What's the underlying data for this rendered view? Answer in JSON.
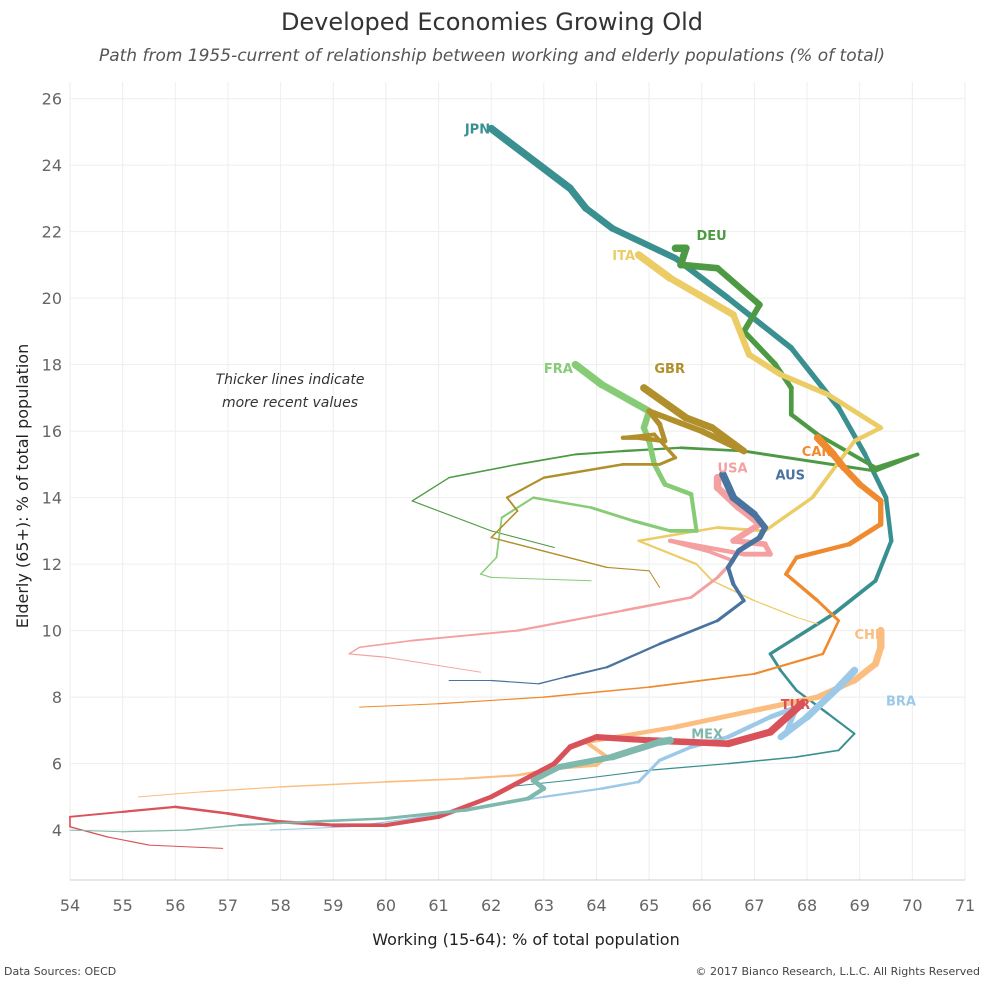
{
  "title": "Developed Economies Growing Old",
  "subtitle": "Path from 1955-current of relationship between working and elderly populations (% of total)",
  "footer": {
    "source": "Data Sources: OECD",
    "copyright": "© 2017 Bianco Research, L.L.C. All Rights Reserved"
  },
  "chart_data": {
    "type": "line",
    "xlabel": "Working (15-64): % of total population",
    "ylabel": "Elderly (65+): % of total population",
    "xlim": [
      54,
      71
    ],
    "ylim": [
      2.5,
      26.5
    ],
    "xticks": [
      54,
      55,
      56,
      57,
      58,
      59,
      60,
      61,
      62,
      63,
      64,
      65,
      66,
      67,
      68,
      69,
      70,
      71
    ],
    "yticks": [
      4,
      6,
      8,
      10,
      12,
      14,
      16,
      18,
      20,
      22,
      24,
      26
    ],
    "grid": true,
    "annotation": "Thicker lines indicate more recent values",
    "series": [
      {
        "name": "JPN",
        "color": "#3a9090",
        "points": [
          [
            62.3,
            5.3
          ],
          [
            63.5,
            5.5
          ],
          [
            65,
            5.8
          ],
          [
            66.5,
            6.0
          ],
          [
            67.8,
            6.2
          ],
          [
            68.6,
            6.4
          ],
          [
            68.9,
            6.9
          ],
          [
            68.4,
            7.5
          ],
          [
            67.8,
            8.2
          ],
          [
            67.5,
            8.8
          ],
          [
            67.3,
            9.3
          ],
          [
            67.8,
            9.8
          ],
          [
            68.5,
            10.5
          ],
          [
            69.3,
            11.5
          ],
          [
            69.6,
            12.7
          ],
          [
            69.5,
            14.0
          ],
          [
            69.1,
            15.3
          ],
          [
            68.6,
            16.7
          ],
          [
            67.7,
            18.5
          ],
          [
            66.5,
            20.0
          ],
          [
            65.5,
            21.2
          ],
          [
            64.3,
            22.1
          ],
          [
            63.8,
            22.7
          ],
          [
            63.5,
            23.3
          ],
          [
            62,
            25.1
          ]
        ]
      },
      {
        "name": "DEU",
        "color": "#4e9a44",
        "points": [
          [
            63.2,
            12.5
          ],
          [
            62,
            13.0
          ],
          [
            60.5,
            13.9
          ],
          [
            61.2,
            14.6
          ],
          [
            62.5,
            15.0
          ],
          [
            63.6,
            15.3
          ],
          [
            64.5,
            15.4
          ],
          [
            65.6,
            15.5
          ],
          [
            66.8,
            15.4
          ],
          [
            69.3,
            14.8
          ],
          [
            70.1,
            15.3
          ],
          [
            69.3,
            14.9
          ],
          [
            68.2,
            15.9
          ],
          [
            67.7,
            16.5
          ],
          [
            67.7,
            17.3
          ],
          [
            67.4,
            18.0
          ],
          [
            66.8,
            19.0
          ],
          [
            67.1,
            19.8
          ],
          [
            66.3,
            20.9
          ],
          [
            65.6,
            21.0
          ],
          [
            65.7,
            21.5
          ],
          [
            65.5,
            21.5
          ]
        ]
      },
      {
        "name": "ITA",
        "color": "#eccc65",
        "points": [
          [
            68.2,
            10.2
          ],
          [
            67.8,
            10.4
          ],
          [
            67.0,
            10.9
          ],
          [
            66.2,
            11.5
          ],
          [
            65.9,
            12.0
          ],
          [
            64.8,
            12.7
          ],
          [
            66.3,
            13.1
          ],
          [
            67.2,
            13.0
          ],
          [
            68.1,
            14.0
          ],
          [
            68.9,
            15.7
          ],
          [
            69.4,
            16.1
          ],
          [
            68.4,
            17.1
          ],
          [
            67.5,
            17.7
          ],
          [
            66.9,
            18.3
          ],
          [
            66.6,
            19.5
          ],
          [
            65.4,
            20.6
          ],
          [
            64.8,
            21.3
          ]
        ]
      },
      {
        "name": "FRA",
        "color": "#86cc76",
        "points": [
          [
            63.9,
            11.5
          ],
          [
            62,
            11.6
          ],
          [
            61.8,
            11.7
          ],
          [
            62.1,
            12.2
          ],
          [
            62.2,
            13.4
          ],
          [
            62.8,
            14.0
          ],
          [
            63.9,
            13.7
          ],
          [
            64.7,
            13.3
          ],
          [
            65.4,
            13.0
          ],
          [
            65.9,
            13.0
          ],
          [
            65.8,
            14.1
          ],
          [
            65.3,
            14.4
          ],
          [
            65.1,
            15.0
          ],
          [
            65.0,
            15.7
          ],
          [
            64.9,
            16.1
          ],
          [
            65.0,
            16.6
          ],
          [
            64.1,
            17.4
          ],
          [
            63.6,
            18.0
          ]
        ]
      },
      {
        "name": "GBR",
        "color": "#b18f2b",
        "points": [
          [
            65.2,
            11.3
          ],
          [
            65.0,
            11.8
          ],
          [
            64.2,
            11.9
          ],
          [
            62.0,
            12.8
          ],
          [
            62.5,
            13.6
          ],
          [
            62.3,
            14.0
          ],
          [
            63,
            14.6
          ],
          [
            64.5,
            15.0
          ],
          [
            65.2,
            15.0
          ],
          [
            65.5,
            15.2
          ],
          [
            65.1,
            15.9
          ],
          [
            64.5,
            15.8
          ],
          [
            64.8,
            15.8
          ],
          [
            65.3,
            15.7
          ],
          [
            65.2,
            16.2
          ],
          [
            65.0,
            16.6
          ],
          [
            66.0,
            16.0
          ],
          [
            66.8,
            15.4
          ],
          [
            66.2,
            16.1
          ],
          [
            65.7,
            16.4
          ],
          [
            64.9,
            17.3
          ]
        ]
      },
      {
        "name": "USA",
        "color": "#f4a0a0",
        "points": [
          [
            61.8,
            8.75
          ],
          [
            60,
            9.2
          ],
          [
            59.3,
            9.3
          ],
          [
            59.5,
            9.5
          ],
          [
            60.5,
            9.7
          ],
          [
            62.5,
            10.0
          ],
          [
            64.5,
            10.6
          ],
          [
            65.8,
            11.0
          ],
          [
            66.3,
            11.6
          ],
          [
            66.6,
            12.1
          ],
          [
            66.1,
            12.4
          ],
          [
            65.4,
            12.7
          ],
          [
            66.8,
            12.3
          ],
          [
            67.3,
            12.3
          ],
          [
            67.2,
            12.6
          ],
          [
            66.6,
            12.7
          ],
          [
            67.1,
            13.2
          ],
          [
            66.7,
            13.7
          ],
          [
            66.3,
            14.3
          ],
          [
            66.3,
            14.6
          ]
        ]
      },
      {
        "name": "AUS",
        "color": "#4a73a0",
        "points": [
          [
            61.2,
            8.5
          ],
          [
            62,
            8.5
          ],
          [
            62.9,
            8.4
          ],
          [
            63.4,
            8.6
          ],
          [
            64.2,
            8.9
          ],
          [
            65.2,
            9.6
          ],
          [
            66.3,
            10.3
          ],
          [
            66.8,
            10.9
          ],
          [
            66.6,
            11.4
          ],
          [
            66.5,
            11.9
          ],
          [
            66.7,
            12.4
          ],
          [
            67.1,
            12.8
          ],
          [
            67.2,
            13.1
          ],
          [
            67.0,
            13.5
          ],
          [
            66.6,
            14.0
          ],
          [
            66.4,
            14.7
          ]
        ]
      },
      {
        "name": "CAN",
        "color": "#ef8a2e",
        "points": [
          [
            59.5,
            7.7
          ],
          [
            61,
            7.8
          ],
          [
            63,
            8.0
          ],
          [
            65,
            8.3
          ],
          [
            67,
            8.7
          ],
          [
            68.3,
            9.3
          ],
          [
            68.6,
            10.3
          ],
          [
            68.2,
            10.9
          ],
          [
            67.6,
            11.7
          ],
          [
            67.8,
            12.2
          ],
          [
            68.8,
            12.6
          ],
          [
            69.4,
            13.2
          ],
          [
            69.4,
            13.9
          ],
          [
            69.0,
            14.4
          ],
          [
            68.7,
            14.9
          ],
          [
            68.5,
            15.3
          ],
          [
            68.2,
            15.8
          ]
        ]
      },
      {
        "name": "CHL",
        "color": "#fbbe80",
        "points": [
          [
            55.3,
            5.0
          ],
          [
            56.5,
            5.15
          ],
          [
            58,
            5.3
          ],
          [
            60,
            5.45
          ],
          [
            61.5,
            5.55
          ],
          [
            62.5,
            5.65
          ],
          [
            63.2,
            5.85
          ],
          [
            64,
            5.95
          ],
          [
            64.2,
            6.2
          ],
          [
            63.8,
            6.65
          ],
          [
            65.5,
            7.1
          ],
          [
            67,
            7.6
          ],
          [
            68.2,
            8.0
          ],
          [
            68.9,
            8.5
          ],
          [
            69.3,
            9.0
          ],
          [
            69.4,
            9.5
          ],
          [
            69.4,
            10.0
          ]
        ]
      },
      {
        "name": "BRA",
        "color": "#9cc9e8",
        "points": [
          [
            57.8,
            4.0
          ],
          [
            59.3,
            4.1
          ],
          [
            60.5,
            4.35
          ],
          [
            61.8,
            4.7
          ],
          [
            63,
            5.0
          ],
          [
            64.1,
            5.25
          ],
          [
            64.8,
            5.45
          ],
          [
            65.2,
            6.1
          ],
          [
            65.8,
            6.5
          ],
          [
            66.5,
            6.8
          ],
          [
            67.3,
            7.4
          ],
          [
            67.8,
            7.7
          ],
          [
            67.6,
            6.9
          ],
          [
            67.5,
            6.8
          ],
          [
            68.0,
            7.4
          ],
          [
            68.6,
            8.3
          ],
          [
            68.9,
            8.8
          ]
        ]
      },
      {
        "name": "TUR",
        "color": "#d9525a",
        "points": [
          [
            56.9,
            3.45
          ],
          [
            55.5,
            3.55
          ],
          [
            54.7,
            3.8
          ],
          [
            54,
            4.1
          ],
          [
            54,
            4.4
          ],
          [
            55,
            4.55
          ],
          [
            56,
            4.7
          ],
          [
            57,
            4.5
          ],
          [
            58,
            4.25
          ],
          [
            59,
            4.15
          ],
          [
            60,
            4.15
          ],
          [
            61,
            4.4
          ],
          [
            62,
            5.0
          ],
          [
            63.2,
            6.0
          ],
          [
            63.5,
            6.5
          ],
          [
            64,
            6.8
          ],
          [
            65,
            6.7
          ],
          [
            66.5,
            6.6
          ],
          [
            67.3,
            6.95
          ],
          [
            67.9,
            7.8
          ]
        ]
      },
      {
        "name": "MEX",
        "color": "#7fb8ad",
        "points": [
          [
            54,
            4.0
          ],
          [
            55,
            3.95
          ],
          [
            56.2,
            4.0
          ],
          [
            57.2,
            4.15
          ],
          [
            58.5,
            4.25
          ],
          [
            60,
            4.35
          ],
          [
            61.5,
            4.6
          ],
          [
            62.7,
            4.95
          ],
          [
            63.0,
            5.25
          ],
          [
            62.8,
            5.5
          ],
          [
            63.3,
            5.9
          ],
          [
            64.3,
            6.2
          ],
          [
            65.2,
            6.65
          ],
          [
            65.4,
            6.7
          ]
        ]
      }
    ],
    "series_labels": [
      {
        "name": "JPN",
        "x": 61.5,
        "y": 25.1
      },
      {
        "name": "DEU",
        "x": 65.9,
        "y": 21.9
      },
      {
        "name": "ITA",
        "x": 64.3,
        "y": 21.3
      },
      {
        "name": "FRA",
        "x": 63.0,
        "y": 17.9
      },
      {
        "name": "GBR",
        "x": 65.1,
        "y": 17.9
      },
      {
        "name": "CAN",
        "x": 67.9,
        "y": 15.4
      },
      {
        "name": "USA",
        "x": 66.3,
        "y": 14.9
      },
      {
        "name": "AUS",
        "x": 67.4,
        "y": 14.7
      },
      {
        "name": "CHL",
        "x": 68.9,
        "y": 9.9
      },
      {
        "name": "BRA",
        "x": 69.5,
        "y": 7.9
      },
      {
        "name": "TUR",
        "x": 67.5,
        "y": 7.8
      },
      {
        "name": "MEX",
        "x": 65.8,
        "y": 6.9
      }
    ]
  }
}
